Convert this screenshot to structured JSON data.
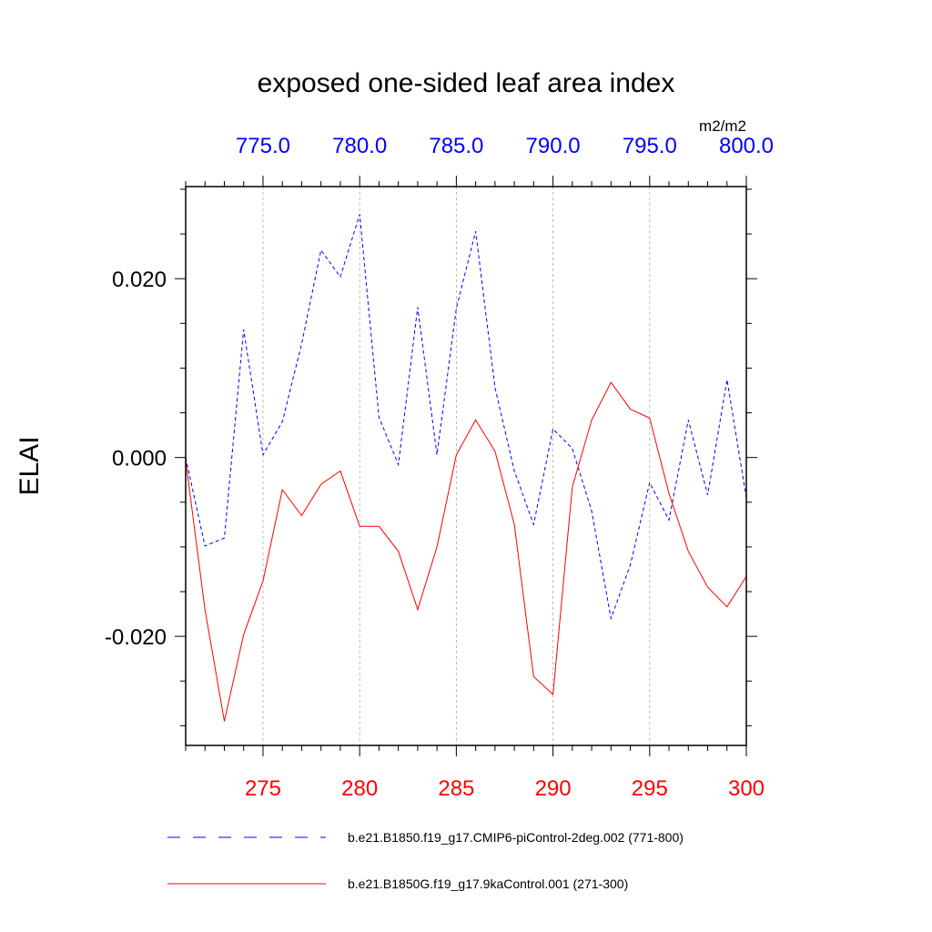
{
  "chart_data": {
    "type": "line",
    "title": "exposed one-sided leaf area index",
    "units": "m2/m2",
    "ylabel": "ELAI",
    "ylim": [
      -0.0322,
      0.0303
    ],
    "yticks": [
      -0.02,
      0.0,
      0.02
    ],
    "ytick_labels": [
      "-0.020",
      "0.000",
      "0.020"
    ],
    "bottom_axis": {
      "color": "#ff0000",
      "xlim": [
        271,
        300
      ],
      "ticks": [
        275,
        280,
        285,
        290,
        295,
        300
      ],
      "tick_labels": [
        "275",
        "280",
        "285",
        "290",
        "295",
        "300"
      ]
    },
    "top_axis": {
      "color": "#0000ff",
      "xlim": [
        771,
        800
      ],
      "ticks": [
        775,
        780,
        785,
        790,
        795,
        800
      ],
      "tick_labels": [
        "775.0",
        "780.0",
        "785.0",
        "790.0",
        "795.0",
        "800.0"
      ]
    },
    "series": [
      {
        "name": "b.e21.B1850.f19_g17.CMIP6-piControl-2deg.002 (771-800)",
        "axis": "top",
        "color": "#0000ff",
        "dash": true,
        "x": [
          771,
          772,
          773,
          774,
          775,
          776,
          777,
          778,
          779,
          780,
          781,
          782,
          783,
          784,
          785,
          786,
          787,
          788,
          789,
          790,
          791,
          792,
          793,
          794,
          795,
          796,
          797,
          798,
          799,
          800
        ],
        "values": [
          0.0,
          -0.0099,
          -0.009,
          0.0143,
          0.0003,
          0.004,
          0.0127,
          0.0232,
          0.0202,
          0.0272,
          0.0045,
          -0.0008,
          0.0168,
          0.0003,
          0.0167,
          0.0253,
          0.0078,
          -0.0015,
          -0.0075,
          0.0032,
          0.001,
          -0.006,
          -0.018,
          -0.012,
          -0.0028,
          -0.007,
          0.0042,
          -0.0042,
          0.0087,
          -0.0045
        ]
      },
      {
        "name": "b.e21.B1850G.f19_g17.9kaControl.001 (271-300)",
        "axis": "bottom",
        "color": "#ff0000",
        "dash": false,
        "x": [
          271,
          272,
          273,
          274,
          275,
          276,
          277,
          278,
          279,
          280,
          281,
          282,
          283,
          284,
          285,
          286,
          287,
          288,
          289,
          290,
          291,
          292,
          293,
          294,
          295,
          296,
          297,
          298,
          299,
          300
        ],
        "values": [
          -0.0003,
          -0.017,
          -0.0295,
          -0.0198,
          -0.0138,
          -0.0036,
          -0.0065,
          -0.003,
          -0.0015,
          -0.0077,
          -0.0077,
          -0.0105,
          -0.017,
          -0.01,
          0.0003,
          0.0042,
          0.0007,
          -0.0075,
          -0.0245,
          -0.0265,
          -0.0033,
          0.0042,
          0.0084,
          0.0054,
          0.0044,
          -0.004,
          -0.0105,
          -0.0145,
          -0.0167,
          -0.0133
        ]
      }
    ]
  }
}
